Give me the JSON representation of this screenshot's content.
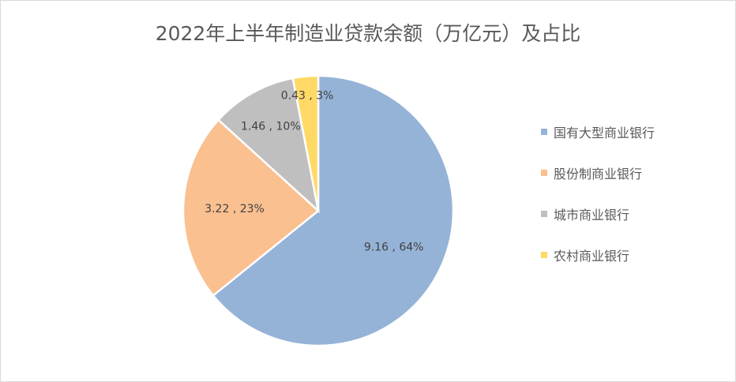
{
  "chart_data": {
    "type": "pie",
    "title": "2022年上半年制造业贷款余额（万亿元）及占比",
    "categories": [
      "国有大型商业银行",
      "股份制商业银行",
      "城市商业银行",
      "农村商业银行"
    ],
    "values": [
      9.16,
      3.22,
      1.46,
      0.43
    ],
    "percents": [
      64,
      23,
      10,
      3
    ],
    "data_labels": [
      "9.16 , 64%",
      "3.22 , 23%",
      "1.46 , 10%",
      "0.43 , 3%"
    ],
    "colors": [
      "#95b3d7",
      "#fac090",
      "#bfbfbf",
      "#ffd966"
    ],
    "legend_position": "right"
  }
}
